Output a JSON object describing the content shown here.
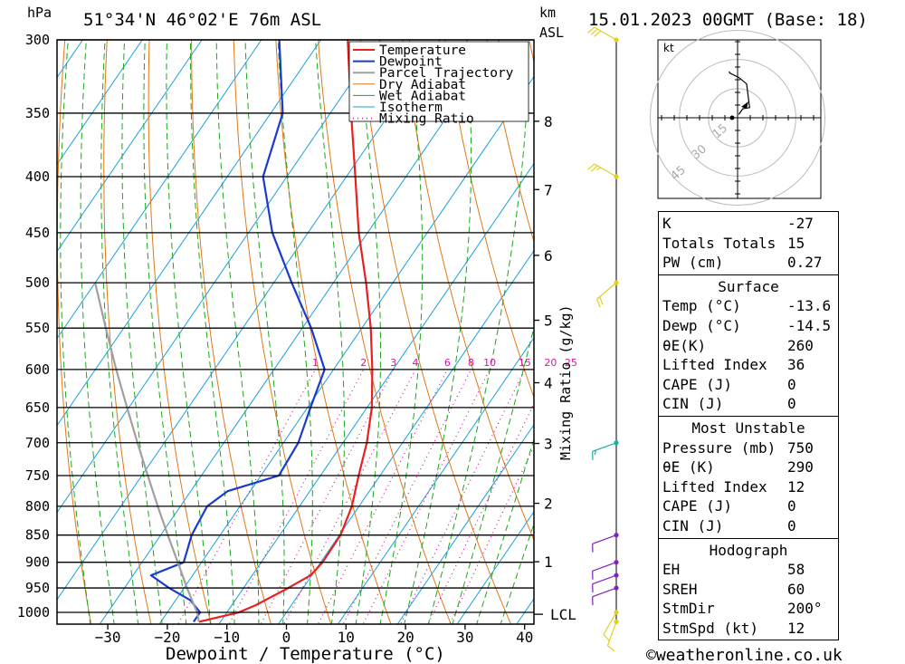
{
  "header": {
    "location": "51°34'N  46°02'E  76m  ASL",
    "date": "15.01.2023  00GMT  (Base: 18)",
    "unit_hpa": "hPa",
    "unit_km": "km",
    "unit_asl": "ASL"
  },
  "colors": {
    "temperature": "#e82020",
    "dewpoint": "#1a3ad0",
    "parcel": "#a0a0a0",
    "dry_adiabat": "#e07818",
    "wet_adiabat": "#1aa81a",
    "isotherm": "#1aa0e0",
    "mixing_ratio": "#d0189c",
    "wind_barb": "#1ab0a0"
  },
  "chart_data": {
    "type": "line",
    "title": "",
    "xlabel": "Dewpoint / Temperature (°C)",
    "ylabel": "hPa",
    "xlim": [
      -40,
      40
    ],
    "ylim": [
      1050,
      300
    ],
    "x_ticks": [
      "−30",
      "−20",
      "−10",
      "0",
      "10",
      "20",
      "30",
      "40"
    ],
    "x_tick_values": [
      -30,
      -20,
      -10,
      0,
      10,
      20,
      30,
      40
    ],
    "pressure_levels": [
      300,
      350,
      400,
      450,
      500,
      550,
      600,
      650,
      700,
      750,
      800,
      850,
      900,
      950,
      1000
    ],
    "km_ticks": [
      {
        "label": "8",
        "p": 356
      },
      {
        "label": "7",
        "p": 411
      },
      {
        "label": "6",
        "p": 472
      },
      {
        "label": "5",
        "p": 541
      },
      {
        "label": "4",
        "p": 617
      },
      {
        "label": "3",
        "p": 701
      },
      {
        "label": "2",
        "p": 795
      },
      {
        "label": "1",
        "p": 899
      }
    ],
    "lcl": {
      "label": "LCL",
      "p": 1004
    },
    "mixing_ratio_axis_label": "Mixing Ratio (g/kg)",
    "mixing_ratio_values": [
      "1",
      "2",
      "3",
      "4",
      "6",
      "8",
      "10",
      "15",
      "20",
      "25"
    ],
    "legend_position": "top-right",
    "legend": [
      "Temperature",
      "Dewpoint",
      "Parcel Trajectory",
      "Dry Adiabat",
      "Wet Adiabat",
      "Isotherm",
      "Mixing Ratio"
    ],
    "series": [
      {
        "name": "Temperature",
        "points": [
          [
            1020,
            -13.6
          ],
          [
            1000,
            -8.0
          ],
          [
            985,
            -6.0
          ],
          [
            950,
            -2.5
          ],
          [
            925,
            -0.2
          ],
          [
            900,
            0.3
          ],
          [
            850,
            0.2
          ],
          [
            800,
            -1.2
          ],
          [
            750,
            -3.6
          ],
          [
            700,
            -6.0
          ],
          [
            650,
            -9.2
          ],
          [
            600,
            -13.5
          ],
          [
            550,
            -18.5
          ],
          [
            500,
            -24.5
          ],
          [
            450,
            -31.5
          ],
          [
            400,
            -38.5
          ],
          [
            350,
            -46.5
          ],
          [
            300,
            -55.5
          ]
        ]
      },
      {
        "name": "Dewpoint",
        "points": [
          [
            1020,
            -14.5
          ],
          [
            1000,
            -14.5
          ],
          [
            975,
            -17.5
          ],
          [
            950,
            -22.5
          ],
          [
            925,
            -27.0
          ],
          [
            900,
            -23.0
          ],
          [
            850,
            -24.8
          ],
          [
            800,
            -25.5
          ],
          [
            775,
            -23.8
          ],
          [
            750,
            -17.0
          ],
          [
            700,
            -17.5
          ],
          [
            650,
            -19.5
          ],
          [
            600,
            -21.5
          ],
          [
            550,
            -28.5
          ],
          [
            500,
            -37.0
          ],
          [
            450,
            -46.0
          ],
          [
            400,
            -54.0
          ],
          [
            350,
            -58.0
          ],
          [
            300,
            -67.0
          ]
        ]
      },
      {
        "name": "Parcel Trajectory",
        "points": [
          [
            1020,
            -13.6
          ],
          [
            1000,
            -15.0
          ],
          [
            950,
            -19.5
          ],
          [
            900,
            -24.0
          ],
          [
            850,
            -28.8
          ],
          [
            800,
            -33.8
          ],
          [
            750,
            -39.0
          ],
          [
            700,
            -44.5
          ],
          [
            650,
            -50.3
          ],
          [
            600,
            -56.5
          ],
          [
            550,
            -63.0
          ],
          [
            500,
            -70.0
          ]
        ]
      }
    ],
    "hodograph": {
      "unit_label": "kt",
      "ring_labels": [
        "15",
        "30",
        "45"
      ],
      "points": [
        [
          200,
          2
        ],
        [
          210,
          6
        ],
        [
          230,
          9
        ],
        [
          195,
          20
        ],
        [
          182,
          23
        ],
        [
          170,
          26
        ],
        [
          170,
          27
        ]
      ]
    },
    "wind_barbs": [
      {
        "p": 300,
        "dir": 300,
        "spd": 30
      },
      {
        "p": 400,
        "dir": 300,
        "spd": 25
      },
      {
        "p": 500,
        "dir": 230,
        "spd": 20
      },
      {
        "p": 700,
        "dir": 250,
        "spd": 15
      },
      {
        "p": 850,
        "dir": 250,
        "spd": 10
      },
      {
        "p": 900,
        "dir": 250,
        "spd": 12
      },
      {
        "p": 925,
        "dir": 250,
        "spd": 12
      },
      {
        "p": 950,
        "dir": 250,
        "spd": 12
      },
      {
        "p": 1000,
        "dir": 210,
        "spd": 8
      },
      {
        "p": 1020,
        "dir": 200,
        "spd": 8
      }
    ]
  },
  "indices": {
    "rows": [
      {
        "label": "K",
        "value": "-27"
      },
      {
        "label": "Totals Totals",
        "value": "15"
      },
      {
        "label": "PW (cm)",
        "value": "0.27"
      }
    ]
  },
  "surface": {
    "title": "Surface",
    "rows": [
      {
        "label": "Temp (°C)",
        "value": "-13.6"
      },
      {
        "label": "Dewp (°C)",
        "value": "-14.5"
      },
      {
        "label": "θE(K)",
        "value": "260"
      },
      {
        "label": "Lifted Index",
        "value": "36"
      },
      {
        "label": "CAPE (J)",
        "value": "0"
      },
      {
        "label": "CIN (J)",
        "value": "0"
      }
    ]
  },
  "most_unstable": {
    "title": "Most Unstable",
    "rows": [
      {
        "label": "Pressure (mb)",
        "value": "750"
      },
      {
        "label": "θE (K)",
        "value": "290"
      },
      {
        "label": "Lifted Index",
        "value": "12"
      },
      {
        "label": "CAPE (J)",
        "value": "0"
      },
      {
        "label": "CIN (J)",
        "value": "0"
      }
    ]
  },
  "hodograph_box": {
    "title": "Hodograph",
    "rows": [
      {
        "label": "EH",
        "value": "58"
      },
      {
        "label": "SREH",
        "value": "60"
      },
      {
        "label": "StmDir",
        "value": "200°"
      },
      {
        "label": "StmSpd (kt)",
        "value": "12"
      }
    ]
  },
  "footer": {
    "copyright": "©weatheronline.co.uk"
  }
}
